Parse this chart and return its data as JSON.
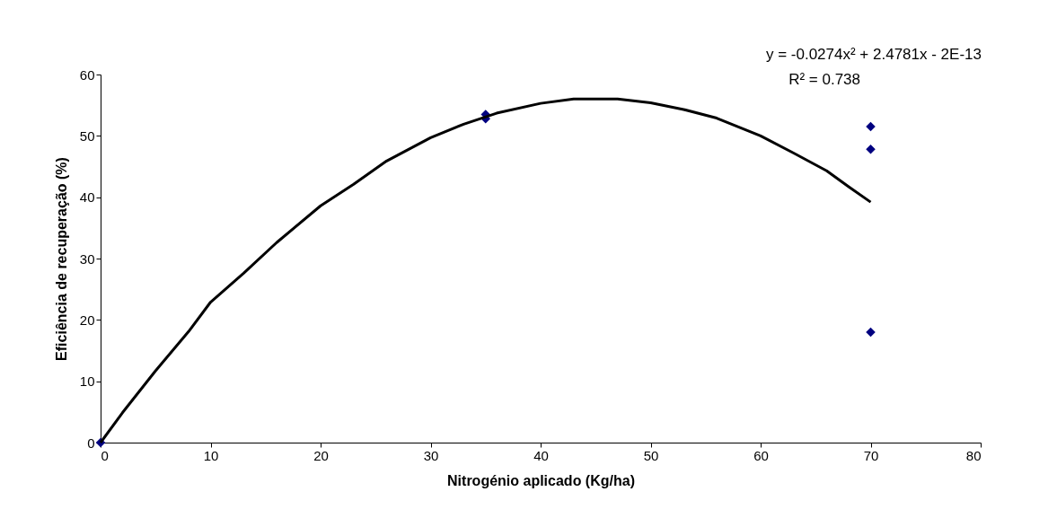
{
  "chart_data": {
    "type": "scatter",
    "xlabel": "Nitrogénio aplicado (Kg/ha)",
    "ylabel": "Eficiência de recuperação (%)",
    "xlim": [
      0,
      80
    ],
    "xticks": [
      0,
      10,
      20,
      30,
      40,
      50,
      60,
      70,
      80
    ],
    "ylim": [
      0,
      60
    ],
    "yticks": [
      0,
      10,
      20,
      30,
      40,
      50,
      60
    ],
    "grid": false,
    "marker": "diamond",
    "series": [
      {
        "type": "scatter",
        "color": "#000080",
        "x": [
          0,
          35,
          35,
          70,
          70,
          70
        ],
        "values": [
          0,
          53.5,
          52.8,
          51.5,
          47.8,
          18
        ]
      },
      {
        "type": "line",
        "color": "#000000",
        "line_style": "solid",
        "marker": "none",
        "x": [
          0,
          2,
          5,
          8,
          10,
          13,
          16,
          20,
          23,
          26,
          30,
          33,
          36,
          40,
          43,
          47,
          50,
          53,
          56,
          60,
          63,
          66,
          68,
          70
        ],
        "values": [
          0,
          4.9,
          11.7,
          18.1,
          22.9,
          27.6,
          32.6,
          38.6,
          42.1,
          45.9,
          49.7,
          51.9,
          53.7,
          55.3,
          56.0,
          56.0,
          55.4,
          54.3,
          52.9,
          50.0,
          47.2,
          44.3,
          41.7,
          39.2
        ]
      }
    ],
    "annotations": [
      "y = -0.0274x² + 2.4781x - 2E-13",
      "R² = 0.738"
    ]
  }
}
